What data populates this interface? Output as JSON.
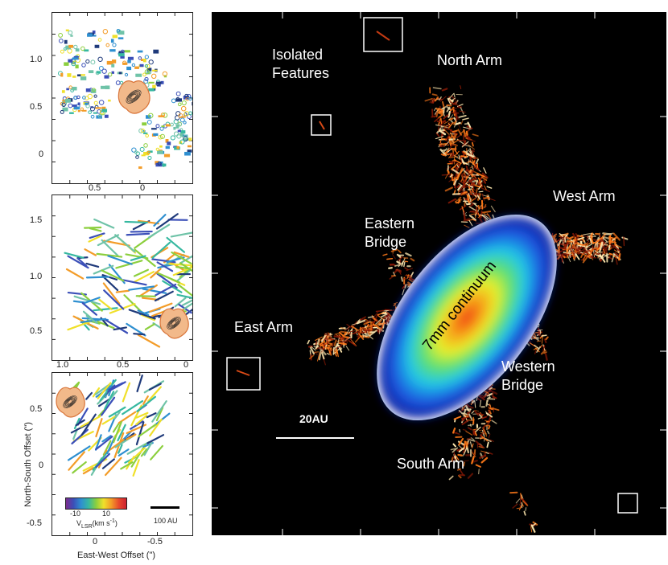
{
  "left_panels": {
    "top": {
      "x_ticks": [
        "0.5",
        "0"
      ],
      "y_ticks": [
        "1.0",
        "0.5",
        "0"
      ]
    },
    "middle": {
      "x_ticks": [
        "1.0",
        "0.5",
        "0"
      ],
      "y_ticks": [
        "1.5",
        "1.0",
        "0.5"
      ]
    },
    "bottom": {
      "x_ticks": [
        "0",
        "-0.5"
      ],
      "y_ticks": [
        "0.5",
        "0",
        "-0.5"
      ],
      "colorbar": {
        "ticks": [
          "-10",
          "10"
        ],
        "label_main": "V",
        "label_sub": "LSR",
        "label_units": "(km s",
        "label_exp": "-1",
        "label_close": ")"
      },
      "scale_bar_label": "100 AU"
    },
    "ylabel": "North-South Offset (\")",
    "xlabel": "East-West Offset (\")"
  },
  "main_image": {
    "labels": {
      "isolated": [
        "Isolated",
        "Features"
      ],
      "north_arm": "North Arm",
      "west_arm": "West Arm",
      "eastern_bridge": [
        "Eastern",
        "Bridge"
      ],
      "east_arm": "East Arm",
      "western_bridge": [
        "Western",
        "Bridge"
      ],
      "south_arm": "South Arm",
      "continuum": "7mm continuum",
      "scale": "20AU"
    },
    "colors": {
      "background": "#000000",
      "maser_hot": "#ffe9b0",
      "maser_mid": "#ff7a1a",
      "maser_dark": "#8b1a06"
    }
  }
}
